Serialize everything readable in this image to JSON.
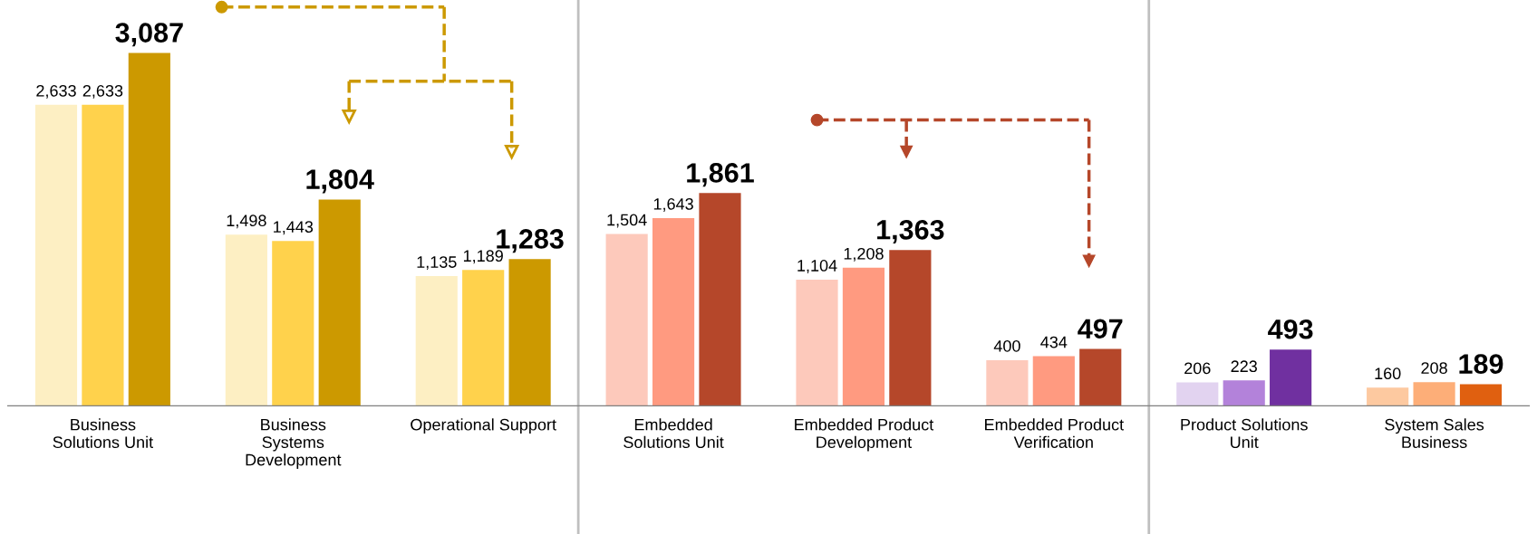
{
  "chart_data": {
    "type": "bar",
    "categories": [
      "Business\nSolutions Unit",
      "Business\nSystems\nDevelopment",
      "Operational Support",
      "Embedded\nSolutions Unit",
      "Embedded Product\nDevelopment",
      "Embedded Product\nVerification",
      "Product Solutions\nUnit",
      "System Sales\nBusiness"
    ],
    "series": [
      {
        "values": [
          2633,
          1498,
          1135,
          1504,
          1104,
          400,
          206,
          160
        ],
        "value_labels": [
          "2,633",
          "1,498",
          "1,135",
          "1,504",
          "1,104",
          "400",
          "206",
          "160"
        ],
        "colors": [
          "#fdefc3",
          "#fdefc3",
          "#fdefc3",
          "#fdc9bb",
          "#fdc9bb",
          "#fdc9bb",
          "#e2d3f0",
          "#fdc9a0"
        ]
      },
      {
        "values": [
          2633,
          1443,
          1189,
          1643,
          1208,
          434,
          223,
          208
        ],
        "value_labels": [
          "2,633",
          "1,443",
          "1,189",
          "1,643",
          "1,208",
          "434",
          "223",
          "208"
        ],
        "colors": [
          "#ffd24c",
          "#ffd24c",
          "#ffd24c",
          "#ff9a80",
          "#ff9a80",
          "#ff9a80",
          "#b382da",
          "#fdae78"
        ]
      },
      {
        "values": [
          3087,
          1804,
          1283,
          1861,
          1363,
          497,
          493,
          189
        ],
        "value_labels": [
          "3,087",
          "1,804",
          "1,283",
          "1,861",
          "1,363",
          "497",
          "493",
          "189"
        ],
        "colors": [
          "#cc9900",
          "#cc9900",
          "#cc9900",
          "#b5472a",
          "#b5472a",
          "#b5472a",
          "#7030a0",
          "#e06010"
        ]
      }
    ],
    "grid": false,
    "legend": false
  }
}
